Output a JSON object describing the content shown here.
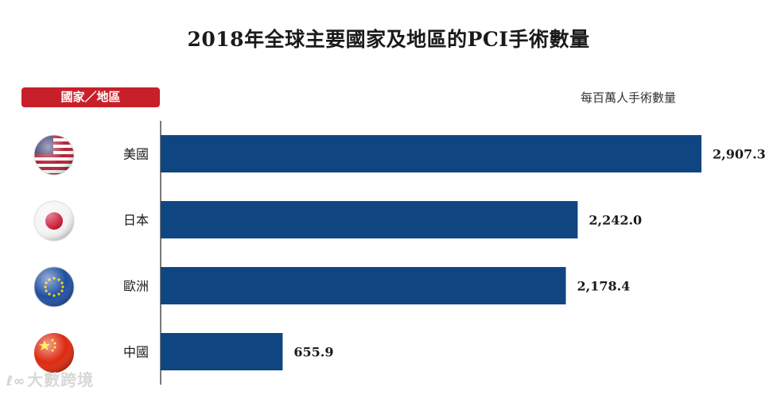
{
  "header": {
    "title": "2018年全球主要國家及地區的PCI手術數量",
    "category_label": "國家／地區",
    "unit_label": "每百萬人手術數量"
  },
  "watermark": {
    "logo": "ℓ∞",
    "text": "大數跨境"
  },
  "colors": {
    "bar": "#0f4682",
    "accent": "#c8202a",
    "axis": "#222222"
  },
  "icons": [
    "usa-flag-icon",
    "japan-flag-icon",
    "eu-flag-icon",
    "china-flag-icon"
  ],
  "chart_data": {
    "type": "bar",
    "orientation": "horizontal",
    "title": "2018年全球主要國家及地區的PCI手術數量",
    "ylabel": "國家／地區",
    "xlabel": "每百萬人手術數量",
    "categories": [
      "美國",
      "日本",
      "歐洲",
      "中國"
    ],
    "values": [
      2907.3,
      2242.0,
      2178.4,
      655.9
    ],
    "value_labels": [
      "2,907.3",
      "2,242.0",
      "2,178.4",
      "655.9"
    ],
    "xlim": [
      0,
      2907.3
    ],
    "grid": false,
    "legend": "none"
  }
}
